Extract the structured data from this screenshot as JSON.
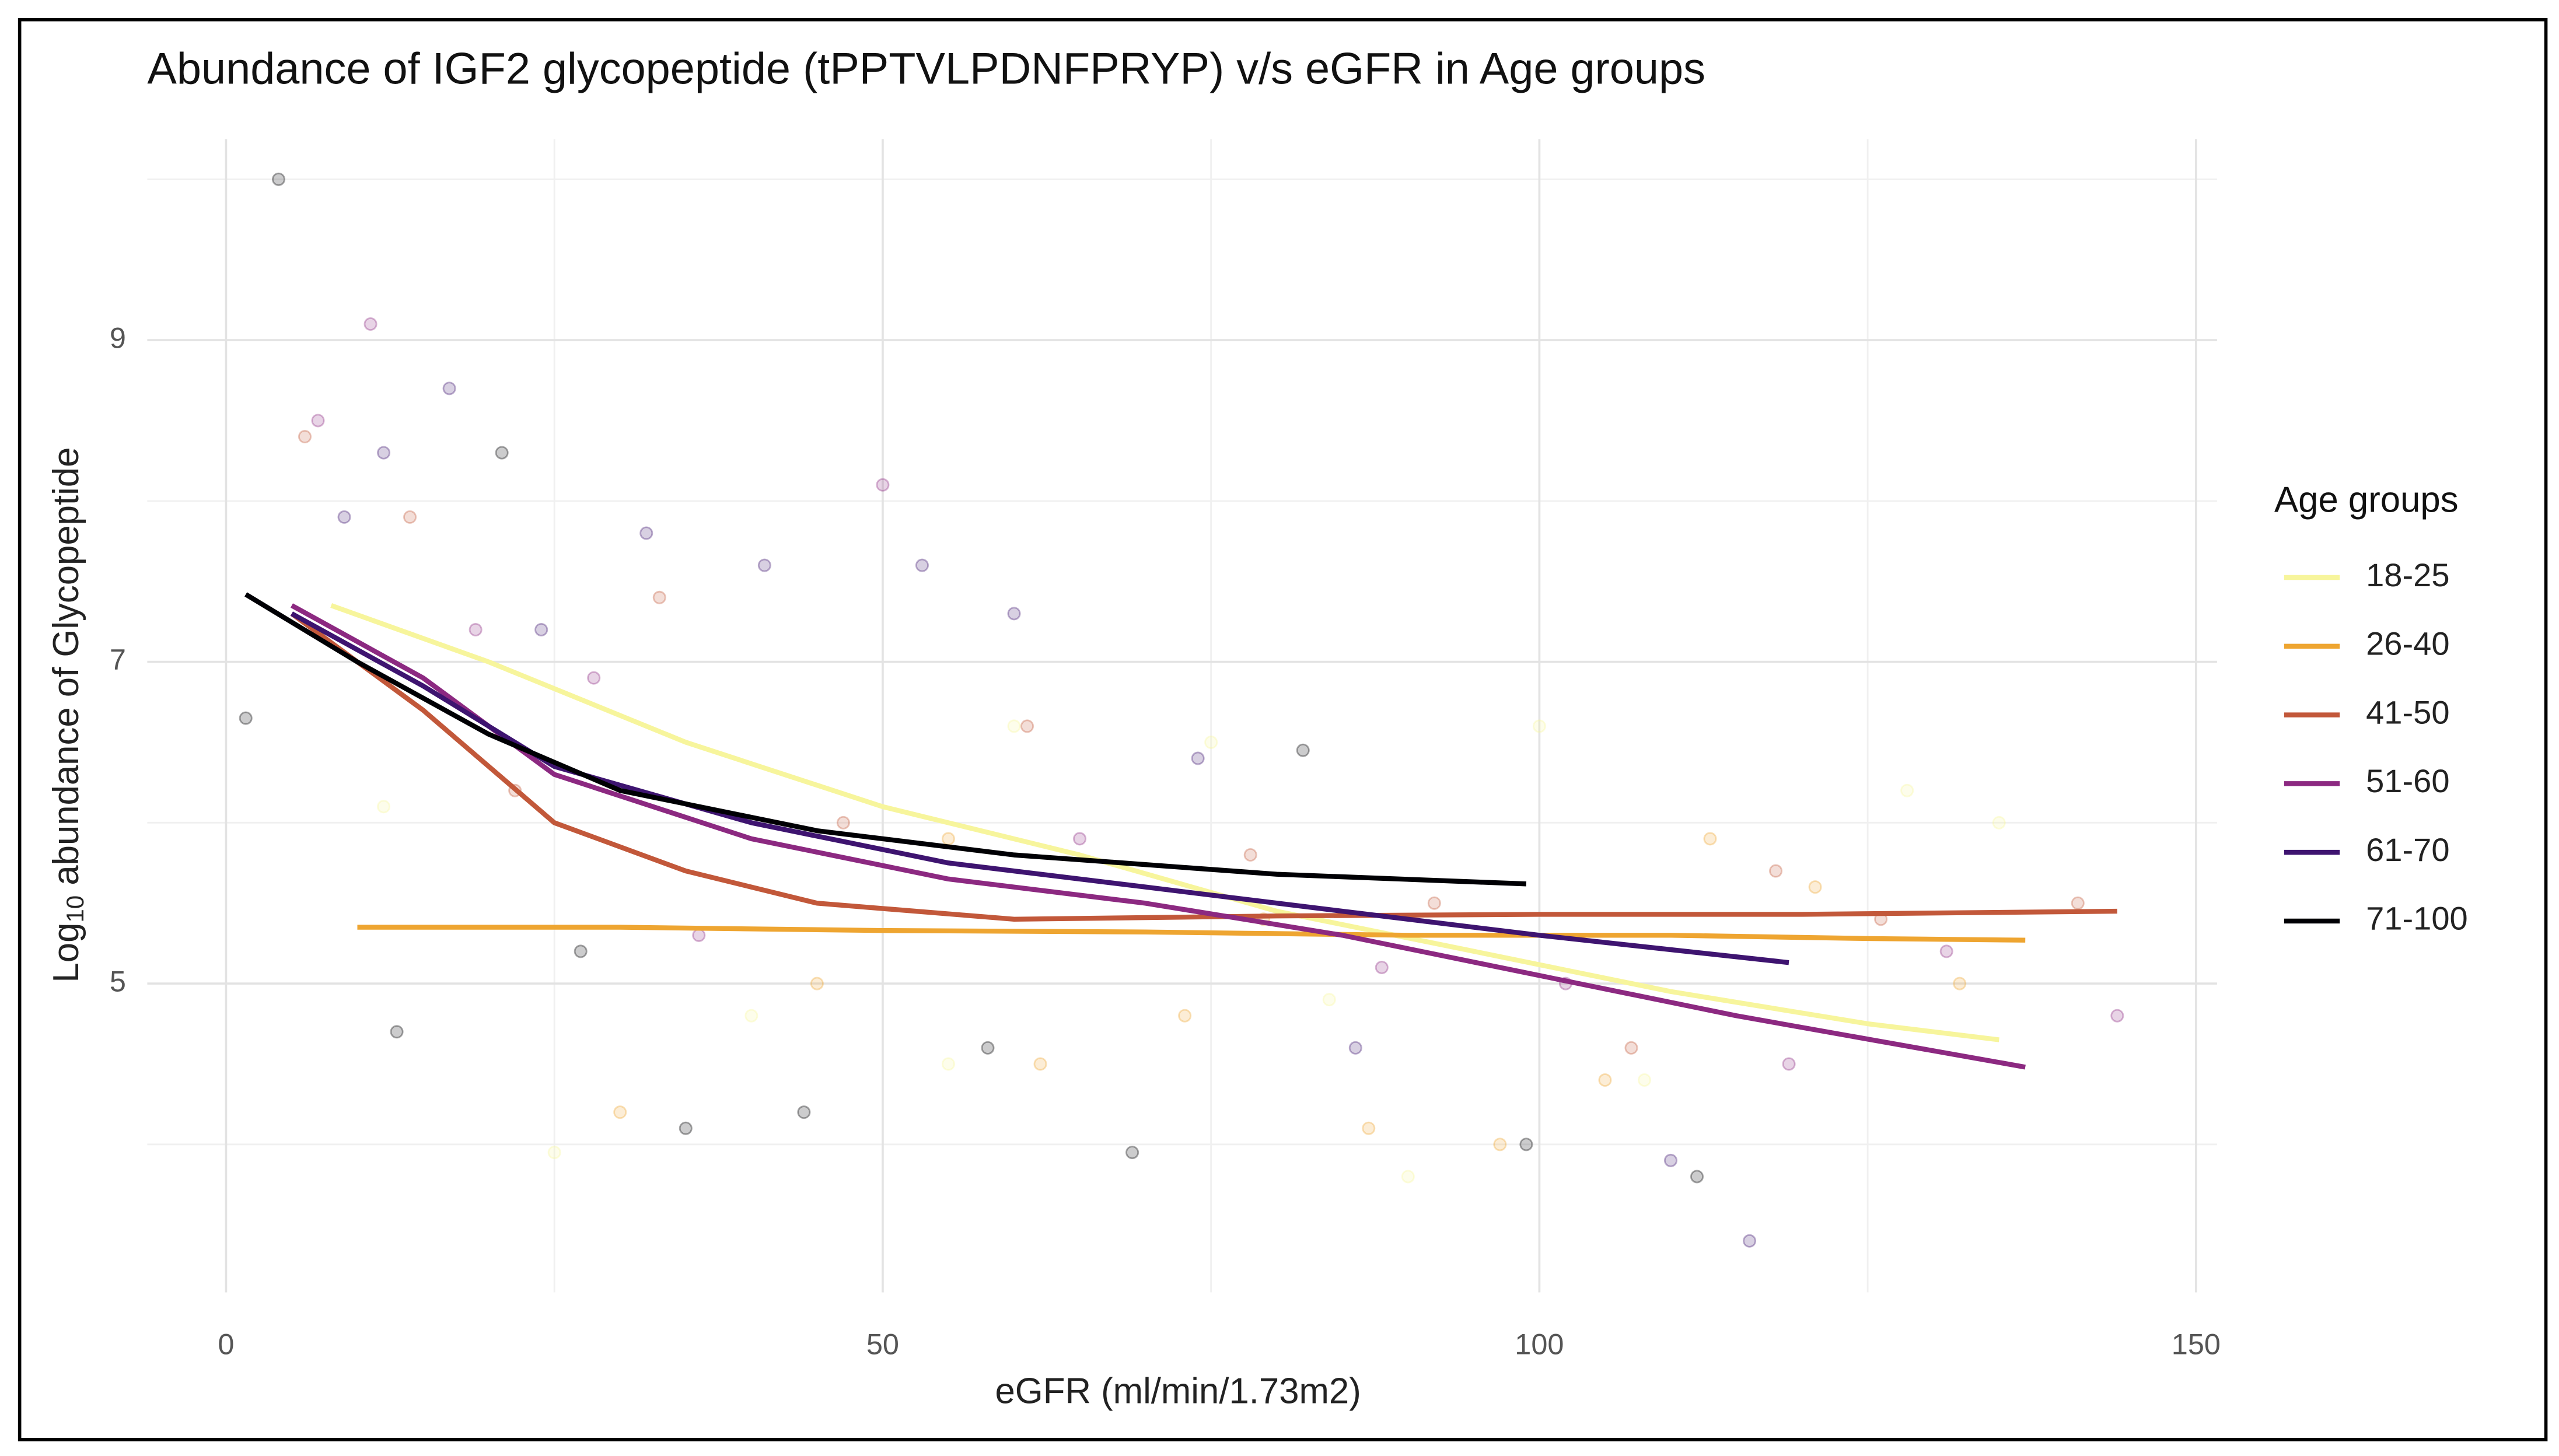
{
  "chart_data": {
    "type": "line",
    "title": "Abundance of IGF2 glycopeptide (tPPTVLPDNFPRYP) v/s eGFR in Age groups",
    "x_label": "eGFR (ml/min/1.73m2)",
    "y_label": {
      "prefix": "Log",
      "subscript": "10",
      "rest": " abundance of Glycopeptide"
    },
    "legend_title": "Age groups",
    "legend": "right",
    "grid": true,
    "xlim": [
      -6,
      151.6
    ],
    "ylim": [
      3.08,
      10.25
    ],
    "xticks": [
      0,
      50,
      100,
      150
    ],
    "yticks": [
      5,
      7,
      9
    ],
    "x_minor_grid": [
      25,
      75,
      125
    ],
    "y_minor_grid": [
      4,
      6,
      8,
      10
    ],
    "series": [
      {
        "name": "18-25",
        "color": "#f7f59c",
        "x": [
          8,
          20,
          35,
          50,
          65,
          80,
          95,
          110,
          125,
          135
        ],
        "values": [
          7.35,
          7.0,
          6.5,
          6.1,
          5.8,
          5.45,
          5.2,
          4.95,
          4.75,
          4.65
        ],
        "scatter_x": [
          12,
          25,
          40,
          55,
          75,
          90,
          100,
          108,
          128,
          135,
          60,
          84
        ],
        "scatter_values": [
          6.1,
          3.95,
          4.8,
          4.5,
          6.5,
          3.8,
          6.6,
          4.4,
          6.2,
          6.0,
          6.6,
          4.9
        ]
      },
      {
        "name": "26-40",
        "color": "#eea531",
        "x": [
          10,
          30,
          50,
          70,
          90,
          110,
          125,
          137
        ],
        "values": [
          5.35,
          5.35,
          5.33,
          5.32,
          5.3,
          5.3,
          5.28,
          5.27
        ],
        "scatter_x": [
          30,
          45,
          62,
          73,
          87,
          97,
          105,
          113,
          121,
          132,
          55,
          79
        ],
        "scatter_values": [
          4.2,
          5.0,
          4.5,
          4.8,
          4.1,
          4.0,
          4.4,
          5.9,
          5.6,
          5.0,
          5.9,
          5.4
        ]
      },
      {
        "name": "41-50",
        "color": "#c2583a",
        "x": [
          5,
          15,
          25,
          35,
          45,
          60,
          80,
          100,
          120,
          144
        ],
        "values": [
          7.3,
          6.7,
          6.0,
          5.7,
          5.5,
          5.4,
          5.42,
          5.43,
          5.43,
          5.45
        ],
        "scatter_x": [
          6,
          14,
          22,
          33,
          47,
          61,
          78,
          92,
          107,
          118,
          126,
          141
        ],
        "scatter_values": [
          8.4,
          7.9,
          6.2,
          7.4,
          6.0,
          6.6,
          5.8,
          5.5,
          4.6,
          5.7,
          5.4,
          5.5
        ]
      },
      {
        "name": "51-60",
        "color": "#8c2981",
        "x": [
          5,
          15,
          25,
          40,
          55,
          70,
          85,
          100,
          115,
          137
        ],
        "values": [
          7.35,
          6.9,
          6.3,
          5.9,
          5.65,
          5.5,
          5.3,
          5.05,
          4.8,
          4.48
        ],
        "scatter_x": [
          7,
          11,
          19,
          28,
          36,
          50,
          65,
          88,
          102,
          119,
          131,
          144
        ],
        "scatter_values": [
          8.5,
          9.1,
          7.2,
          6.9,
          5.3,
          8.1,
          5.9,
          5.1,
          5.0,
          4.5,
          5.2,
          4.8
        ]
      },
      {
        "name": "61-70",
        "color": "#3e1470",
        "x": [
          5,
          15,
          25,
          40,
          55,
          70,
          85,
          100,
          119
        ],
        "values": [
          7.3,
          6.85,
          6.35,
          6.0,
          5.75,
          5.6,
          5.45,
          5.3,
          5.13
        ],
        "scatter_x": [
          9,
          12,
          17,
          24,
          32,
          41,
          53,
          60,
          74,
          86,
          110,
          116
        ],
        "scatter_values": [
          7.9,
          8.3,
          8.7,
          7.2,
          7.8,
          7.6,
          7.6,
          7.3,
          6.4,
          4.6,
          3.9,
          3.4
        ]
      },
      {
        "name": "71-100",
        "color": "#000004",
        "x": [
          1.5,
          10,
          20,
          30,
          45,
          60,
          80,
          99
        ],
        "values": [
          7.42,
          7.0,
          6.55,
          6.2,
          5.95,
          5.8,
          5.68,
          5.62
        ],
        "scatter_x": [
          1.5,
          4,
          13,
          21,
          27,
          35,
          44,
          58,
          69,
          82,
          99,
          112
        ],
        "scatter_values": [
          6.65,
          10.0,
          4.7,
          8.3,
          5.2,
          4.1,
          4.2,
          4.6,
          3.95,
          6.45,
          4.0,
          3.8
        ]
      }
    ]
  }
}
